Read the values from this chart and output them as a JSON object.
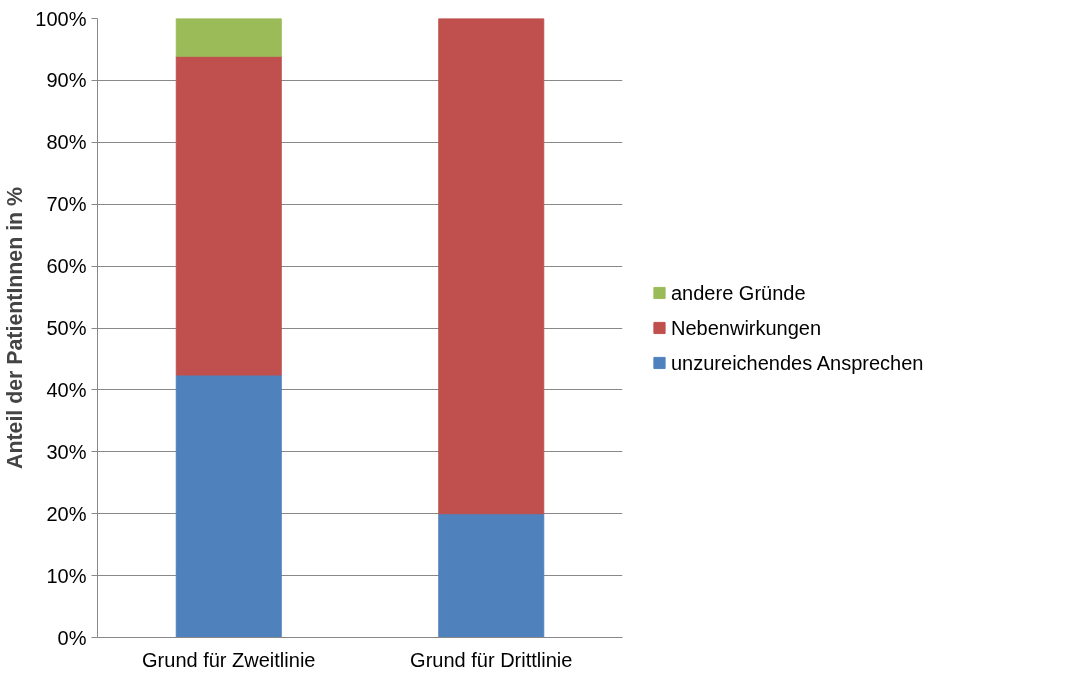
{
  "chart_data": {
    "type": "bar",
    "stacked": true,
    "ylabel": "Anteil der PatientInnen in %",
    "categories": [
      "Grund für Zweitlinie",
      "Grund für Drittlinie"
    ],
    "series": [
      {
        "name": "unzureichendes Ansprechen",
        "color": "#4f81bd",
        "values": [
          42.4,
          20
        ]
      },
      {
        "name": "Nebenwirkungen",
        "color": "#c0504d",
        "values": [
          51.5,
          80
        ]
      },
      {
        "name": "andere Gründe",
        "color": "#9bbb59",
        "values": [
          6.1,
          null
        ]
      }
    ],
    "ylim": [
      0,
      100
    ],
    "yticks": [
      {
        "value": 0,
        "label": "0%"
      },
      {
        "value": 10,
        "label": "10%"
      },
      {
        "value": 20,
        "label": "20%"
      },
      {
        "value": 30,
        "label": "30%"
      },
      {
        "value": 40,
        "label": "40%"
      },
      {
        "value": 50,
        "label": "50%"
      },
      {
        "value": 60,
        "label": "60%"
      },
      {
        "value": 70,
        "label": "70%"
      },
      {
        "value": 80,
        "label": "80%"
      },
      {
        "value": 90,
        "label": "90%"
      },
      {
        "value": 100,
        "label": "100%"
      }
    ],
    "grid": "y",
    "legend": "right"
  }
}
